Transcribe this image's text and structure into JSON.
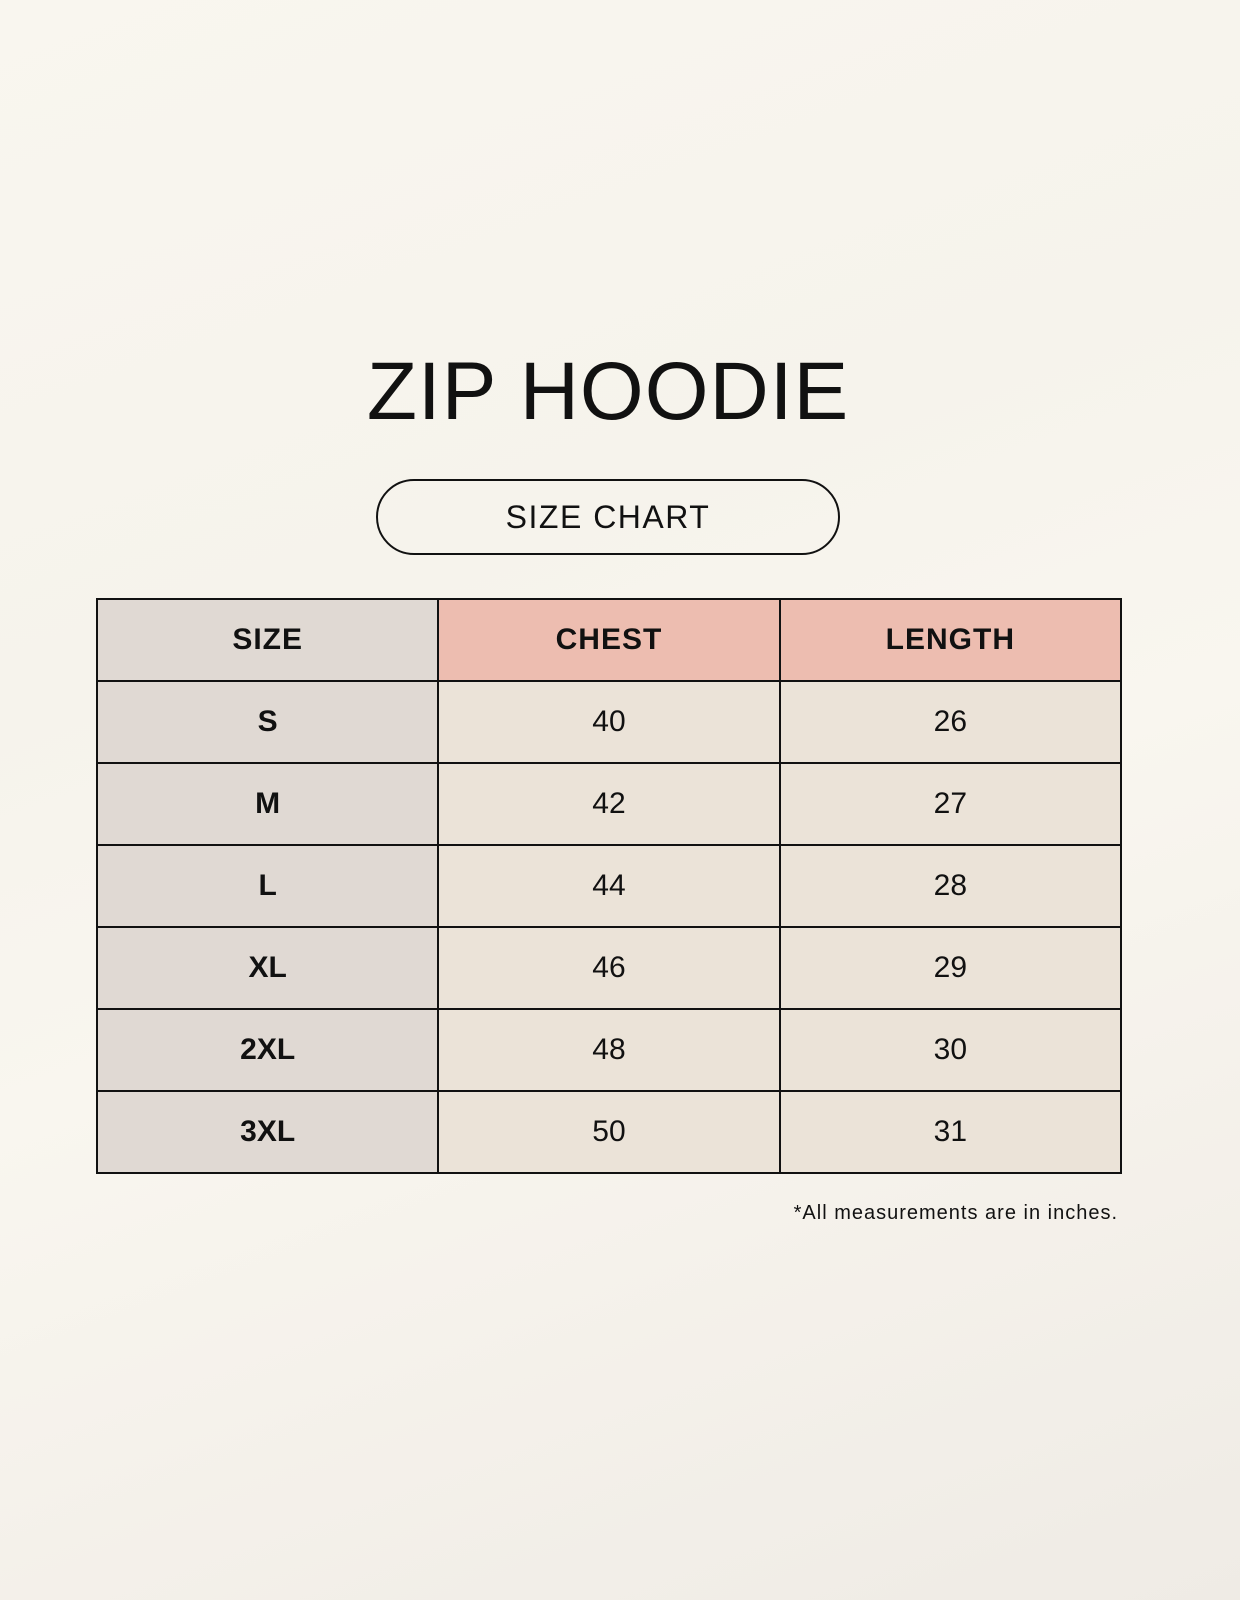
{
  "title": "ZIP HOODIE",
  "subtitle": "SIZE CHART",
  "table": {
    "headers": [
      "SIZE",
      "CHEST",
      "LENGTH"
    ],
    "rows": [
      [
        "S",
        "40",
        "26"
      ],
      [
        "M",
        "42",
        "27"
      ],
      [
        "L",
        "44",
        "28"
      ],
      [
        "XL",
        "46",
        "29"
      ],
      [
        "2XL",
        "48",
        "30"
      ],
      [
        "3XL",
        "50",
        "31"
      ]
    ]
  },
  "footnote": "*All measurements are in inches.",
  "colors": {
    "size_column": "#e0d9d3",
    "header_accent": "#edbdb0",
    "value_cells": "#ebe3d8"
  }
}
